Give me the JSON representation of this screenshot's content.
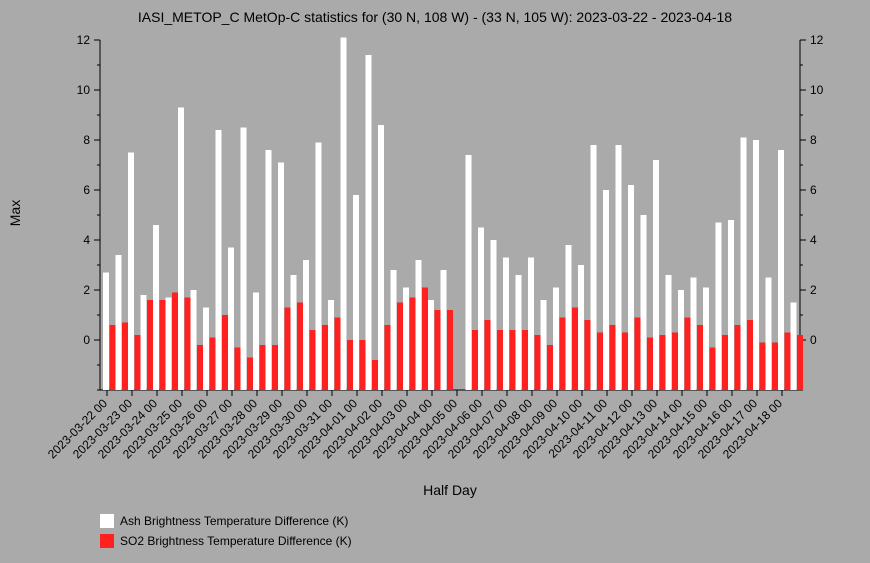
{
  "chart_data": {
    "type": "bar",
    "title": "IASI_METOP_C MetOp-C statistics for (30 N, 108 W) - (33 N, 105 W): 2023-03-22 - 2023-04-18",
    "xlabel": "Half Day",
    "ylabel": "Max",
    "ylim": [
      -2,
      12
    ],
    "yticks": [
      0,
      2,
      4,
      6,
      8,
      10,
      12
    ],
    "grid": false,
    "legend_position": "bottom-left",
    "xtick_labels": [
      "2023-03-22 00",
      "2023-03-23 00",
      "2023-03-24 00",
      "2023-03-25 00",
      "2023-03-26 00",
      "2023-03-27 00",
      "2023-03-28 00",
      "2023-03-29 00",
      "2023-03-30 00",
      "2023-03-31 00",
      "2023-04-01 00",
      "2023-04-02 00",
      "2023-04-03 00",
      "2023-04-04 00",
      "2023-04-05 00",
      "2023-04-06 00",
      "2023-04-07 00",
      "2023-04-08 00",
      "2023-04-09 00",
      "2023-04-10 00",
      "2023-04-11 00",
      "2023-04-12 00",
      "2023-04-13 00",
      "2023-04-14 00",
      "2023-04-15 00",
      "2023-04-16 00",
      "2023-04-17 00",
      "2023-04-18 00"
    ],
    "series": [
      {
        "name": "Ash Brightness Temperature Difference (K)",
        "color": "#ffffff",
        "values": [
          2.7,
          3.4,
          7.5,
          1.8,
          4.6,
          1.7,
          9.3,
          2.0,
          1.3,
          8.4,
          3.7,
          8.5,
          1.9,
          7.6,
          7.1,
          2.6,
          3.2,
          7.9,
          1.6,
          12.1,
          5.8,
          11.4,
          8.6,
          2.8,
          2.1,
          3.2,
          1.6,
          2.8,
          null,
          7.4,
          4.5,
          4.0,
          3.3,
          2.6,
          3.3,
          1.6,
          2.1,
          3.8,
          3.0,
          7.8,
          6.0,
          7.8,
          6.2,
          5.0,
          7.2,
          2.6,
          2.0,
          2.5,
          2.1,
          4.7,
          4.8,
          8.1,
          8.0,
          2.5,
          7.6,
          1.5
        ]
      },
      {
        "name": "SO2 Brightness Temperature Difference (K)",
        "color": "#ff2020",
        "values": [
          0.6,
          0.7,
          0.2,
          1.6,
          1.6,
          1.9,
          1.7,
          -0.2,
          0.1,
          1.0,
          -0.3,
          -0.7,
          -0.2,
          -0.2,
          1.3,
          1.5,
          0.4,
          0.6,
          0.9,
          0.0,
          0.0,
          -0.8,
          0.6,
          1.5,
          1.7,
          2.1,
          1.2,
          1.2,
          null,
          0.4,
          0.8,
          0.4,
          0.4,
          0.4,
          0.2,
          -0.2,
          0.9,
          1.3,
          0.8,
          0.3,
          0.6,
          0.3,
          0.9,
          0.1,
          0.2,
          0.3,
          0.9,
          0.6,
          -0.3,
          0.2,
          0.6,
          0.8,
          -0.1,
          -0.1,
          0.3,
          0.2
        ]
      }
    ]
  }
}
